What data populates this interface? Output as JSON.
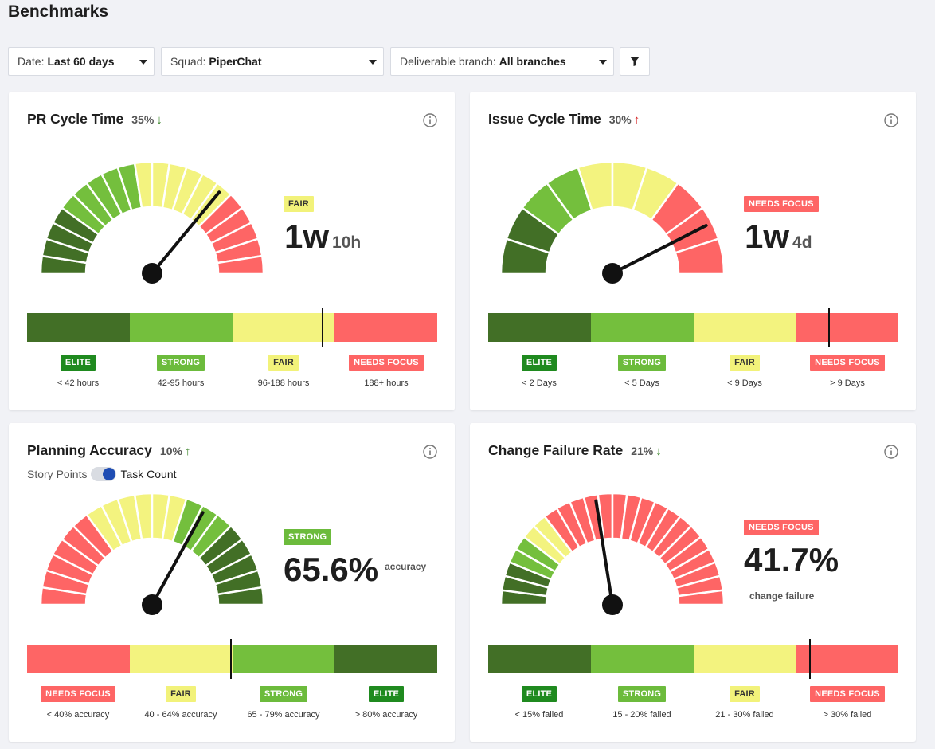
{
  "page": {
    "title": "Benchmarks"
  },
  "filters": {
    "date": {
      "label": "Date:",
      "value": "Last 60 days"
    },
    "squad": {
      "label": "Squad:",
      "value": "PiperChat"
    },
    "branch": {
      "label": "Deliverable branch:",
      "value": "All branches"
    },
    "filter_icon": "funnel-icon"
  },
  "colors": {
    "elite": "#426f26",
    "strong": "#74bf3d",
    "fair": "#f3f37f",
    "needs_focus": "#fe6565",
    "elite_badge": "#1f8a1f",
    "strong_badge": "#6cbb3c"
  },
  "cards": [
    {
      "title": "PR Cycle Time",
      "change": "35%",
      "arrow": "↓",
      "badge": "FAIR",
      "value_main": "1w",
      "value_sub": "10h",
      "bands": [
        {
          "badge": "ELITE",
          "range": "< 42 hours"
        },
        {
          "badge": "STRONG",
          "range": "42-95 hours"
        },
        {
          "badge": "FAIR",
          "range": "96-188 hours"
        },
        {
          "badge": "NEEDS FOCUS",
          "range": "188+ hours"
        }
      ],
      "needle_fraction": 0.72
    },
    {
      "title": "Issue Cycle Time",
      "change": "30%",
      "arrow": "↑",
      "badge": "NEEDS FOCUS",
      "value_main": "1w",
      "value_sub": "4d",
      "bands": [
        {
          "badge": "ELITE",
          "range": "< 2 Days"
        },
        {
          "badge": "STRONG",
          "range": "< 5 Days"
        },
        {
          "badge": "FAIR",
          "range": "< 9 Days"
        },
        {
          "badge": "NEEDS FOCUS",
          "range": "> 9 Days"
        }
      ],
      "needle_fraction": 0.83
    },
    {
      "title": "Planning Accuracy",
      "change": "10%",
      "arrow": "↑",
      "toggle": {
        "left": "Story Points",
        "right": "Task Count"
      },
      "badge": "STRONG",
      "value_main": "65.6%",
      "value_suffix": "accuracy",
      "bands": [
        {
          "badge": "NEEDS FOCUS",
          "range": "< 40% accuracy"
        },
        {
          "badge": "FAIR",
          "range": "40 - 64% accuracy"
        },
        {
          "badge": "STRONG",
          "range": "65 - 79% accuracy"
        },
        {
          "badge": "ELITE",
          "range": "> 80% accuracy"
        }
      ],
      "needle_fraction": 0.65
    },
    {
      "title": "Change Failure Rate",
      "change": "21%",
      "arrow": "↓",
      "badge": "NEEDS FOCUS",
      "value_main": "41.7%",
      "value_caption": "change failure",
      "bands": [
        {
          "badge": "ELITE",
          "range": "< 15% failed"
        },
        {
          "badge": "STRONG",
          "range": "15 - 20% failed"
        },
        {
          "badge": "FAIR",
          "range": "21 - 30% failed"
        },
        {
          "badge": "NEEDS FOCUS",
          "range": "> 30% failed"
        }
      ],
      "needle_fraction": 0.45
    }
  ]
}
